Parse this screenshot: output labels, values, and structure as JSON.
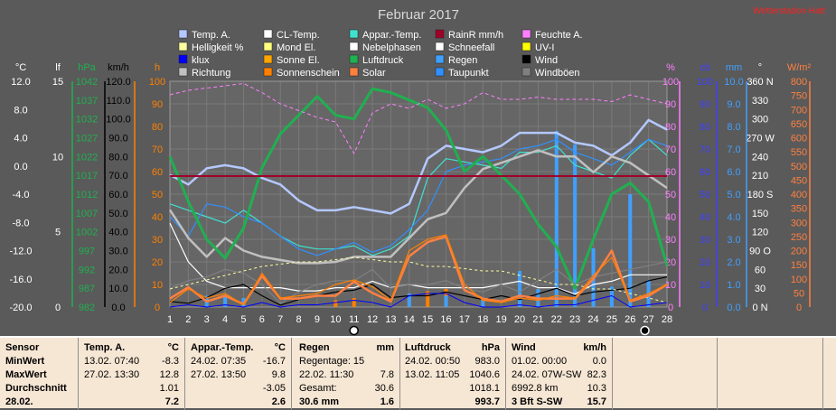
{
  "window": {
    "title": "Februar 2017",
    "corner_link": "Wetterstation Hatt"
  },
  "legend": [
    [
      {
        "label": "Temp. A.",
        "color": "#b4c8ff"
      },
      {
        "label": "CL-Temp.",
        "color": "#ffffff"
      },
      {
        "label": "Appar.-Temp.",
        "color": "#40e0d0"
      },
      {
        "label": "RainR mm/h",
        "color": "#a00028"
      },
      {
        "label": "Feuchte A.",
        "color": "#ff80ff"
      }
    ],
    [
      {
        "label": "Helligkeit %",
        "color": "#ffffa0"
      },
      {
        "label": "Mond El.",
        "color": "#ffff80"
      },
      {
        "label": "Nebelphasen",
        "color": "#ffffff"
      },
      {
        "label": "Schneefall",
        "color": "#ffffff"
      },
      {
        "label": "UV-I",
        "color": "#ffff00"
      }
    ],
    [
      {
        "label": "klux",
        "color": "#0000ff"
      },
      {
        "label": "Sonne El.",
        "color": "#ffa500"
      },
      {
        "label": "Luftdruck",
        "color": "#20b050"
      },
      {
        "label": "Regen",
        "color": "#40a0ff"
      },
      {
        "label": "Wind",
        "color": "#000000"
      }
    ],
    [
      {
        "label": "Richtung",
        "color": "#c0c0c0"
      },
      {
        "label": "Sonnenschein",
        "color": "#ff8000"
      },
      {
        "label": "Solar",
        "color": "#ff8040"
      },
      {
        "label": "Taupunkt",
        "color": "#3090ff"
      },
      {
        "label": "Windböen",
        "color": "#808080"
      }
    ]
  ],
  "colors": {
    "background": "#5a5a5a",
    "plot_bg": "#666666",
    "grid": "#808080",
    "stats_bg": "#f6e6d4"
  },
  "chart_data": {
    "type": "line",
    "x": [
      1,
      2,
      3,
      4,
      5,
      6,
      7,
      8,
      9,
      10,
      11,
      12,
      13,
      14,
      15,
      16,
      17,
      18,
      19,
      20,
      21,
      22,
      23,
      24,
      25,
      26,
      27,
      28
    ],
    "xlim": [
      1,
      28
    ],
    "axes_left": [
      {
        "unit": "°C",
        "ticks": [
          "12.0",
          "8.0",
          "4.0",
          "0.0",
          "-4.0",
          "-8.0",
          "-12.0",
          "-16.0",
          "-20.0"
        ],
        "range": [
          -20,
          15
        ],
        "color": "#ffffff"
      },
      {
        "unit": "lf",
        "ticks": [
          "15",
          "10",
          "5",
          "0"
        ],
        "range": [
          0,
          15
        ],
        "color": "#ffffff"
      },
      {
        "unit": "hPa",
        "ticks": [
          "1042",
          "1037",
          "1032",
          "1027",
          "1022",
          "1017",
          "1012",
          "1007",
          "1002",
          "997",
          "992",
          "987",
          "982"
        ],
        "range": [
          982,
          1042
        ],
        "color": "#20b050"
      },
      {
        "unit": "km/h",
        "ticks": [
          "120.0",
          "110.0",
          "100.0",
          "90.0",
          "80.0",
          "70.0",
          "60.0",
          "50.0",
          "40.0",
          "30.0",
          "20.0",
          "10.0",
          "0.0"
        ],
        "range": [
          0,
          120
        ],
        "color": "#000000"
      },
      {
        "unit": "h",
        "ticks": [
          "100",
          "90",
          "80",
          "70",
          "60",
          "50",
          "40",
          "30",
          "20",
          "10",
          "0"
        ],
        "range": [
          0,
          100
        ],
        "color": "#ff8000"
      }
    ],
    "axes_right": [
      {
        "unit": "%",
        "ticks": [
          "100",
          "90",
          "80",
          "70",
          "60",
          "50",
          "40",
          "30",
          "20",
          "10",
          "0"
        ],
        "range": [
          0,
          100
        ],
        "color": "#ff80ff"
      },
      {
        "unit": "cb",
        "ticks": [
          "100",
          "90",
          "80",
          "70",
          "60",
          "50",
          "40",
          "30",
          "20",
          "10",
          "0"
        ],
        "range": [
          0,
          100
        ],
        "color": "#4040ff"
      },
      {
        "unit": "mm",
        "ticks": [
          "10.0",
          "9.0",
          "8.0",
          "7.0",
          "6.0",
          "5.0",
          "4.0",
          "3.0",
          "2.0",
          "1.0",
          "0.0"
        ],
        "range": [
          0,
          10
        ],
        "color": "#40a0ff"
      },
      {
        "unit": "°",
        "ticks": [
          "360 N",
          "330",
          "300",
          "270 W",
          "240",
          "210",
          "180 S",
          "150",
          "120",
          "90 O",
          "60",
          "30",
          "0    N"
        ],
        "range": [
          0,
          360
        ],
        "color": "#ffffff"
      },
      {
        "unit": "W/m²",
        "ticks": [
          "800",
          "750",
          "700",
          "650",
          "600",
          "550",
          "500",
          "450",
          "400",
          "350",
          "300",
          "250",
          "200",
          "150",
          "100",
          "50",
          "0"
        ],
        "range": [
          0,
          800
        ],
        "color": "#ff8040"
      }
    ],
    "series": [
      {
        "name": "Temp. A.",
        "axis": "°C",
        "color": "#b4c8ff",
        "width": 2.5,
        "values": [
          0.5,
          -1.0,
          1.5,
          2.0,
          1.5,
          0.0,
          -1.0,
          -3.5,
          -5.0,
          -5.0,
          -4.5,
          -5.0,
          -5.5,
          -4.0,
          3.0,
          5.0,
          4.5,
          4.0,
          5.0,
          7.0,
          7.0,
          7.0,
          5.5,
          5.0,
          3.5,
          5.5,
          9.0,
          7.5
        ]
      },
      {
        "name": "Appar.-Temp.",
        "axis": "°C",
        "color": "#40e0d0",
        "width": 1.2,
        "values": [
          -4.0,
          -5.0,
          -6.0,
          -7.0,
          -5.0,
          -7.0,
          -9.0,
          -10.5,
          -11.0,
          -11.0,
          -10.5,
          -12.0,
          -11.0,
          -9.0,
          0.0,
          3.0,
          2.5,
          2.0,
          1.5,
          4.0,
          4.0,
          5.0,
          2.0,
          1.0,
          0.0,
          3.5,
          6.0,
          3.5
        ]
      },
      {
        "name": "Taupunkt",
        "axis": "°C",
        "color": "#3090ff",
        "width": 1.2,
        "values": [
          -6.0,
          -9.0,
          -4.0,
          -4.5,
          -6.0,
          -7.0,
          -9.0,
          -11.0,
          -12.0,
          -11.0,
          -10.0,
          -11.5,
          -10.5,
          -8.0,
          -5.0,
          1.0,
          2.0,
          2.5,
          3.0,
          4.5,
          5.0,
          6.0,
          4.0,
          3.0,
          2.0,
          4.0,
          6.0,
          5.0
        ]
      },
      {
        "name": "CL-Temp.",
        "axis": "°C",
        "color": "#ffffff",
        "width": 1.2,
        "values": [
          -7.0,
          -13.0,
          -16.0,
          -17.0,
          -17.0,
          -17.0,
          -17.0,
          -17.5,
          -17.5,
          -17.0,
          -17.0,
          -16.0,
          -17.0,
          -16.5,
          -17.0,
          -17.0,
          -17.0,
          -17.0,
          -16.5,
          -16.0,
          -17.0,
          -17.0,
          -18.0,
          -16.5,
          -16.0,
          -15.0,
          -15.0,
          -15.0
        ]
      },
      {
        "name": "Richtung",
        "axis": "°",
        "color": "#c0c0c0",
        "width": 2.5,
        "values": [
          155,
          110,
          80,
          110,
          90,
          80,
          75,
          70,
          70,
          72,
          80,
          80,
          80,
          110,
          140,
          150,
          190,
          220,
          230,
          240,
          250,
          240,
          240,
          215,
          240,
          230,
          210,
          190
        ]
      },
      {
        "name": "Luftdruck",
        "axis": "hPa",
        "color": "#20b050",
        "width": 3,
        "values": [
          1022,
          1010,
          1000,
          995,
          1003,
          1019,
          1028,
          1033,
          1038,
          1033,
          1032,
          1040,
          1039,
          1037,
          1035,
          1029,
          1018,
          1022,
          1017,
          1012,
          1004,
          998,
          987,
          1000,
          1012,
          1015,
          1010,
          993
        ]
      },
      {
        "name": "Feuchte A.",
        "axis": "%",
        "color": "#ff80ff",
        "width": 1,
        "dash": "4,3",
        "values": [
          94,
          96,
          97,
          98,
          99,
          95,
          90,
          87,
          84,
          82,
          68,
          86,
          90,
          88,
          92,
          88,
          90,
          95,
          92,
          92,
          93,
          92,
          92,
          92,
          91,
          94,
          92,
          90
        ]
      },
      {
        "name": "Wind",
        "axis": "km/h",
        "color": "#000000",
        "width": 1.2,
        "values": [
          3,
          2,
          5,
          10,
          12,
          6,
          1,
          4,
          6,
          8,
          9,
          12,
          5,
          6,
          6,
          8,
          6,
          4,
          6,
          4,
          7,
          10,
          6,
          8,
          9,
          10,
          14,
          16
        ]
      },
      {
        "name": "Windböen",
        "axis": "km/h",
        "color": "#808080",
        "width": 1.2,
        "values": [
          10,
          14,
          16,
          20,
          18,
          12,
          2,
          8,
          12,
          14,
          14,
          20,
          10,
          12,
          12,
          14,
          10,
          8,
          12,
          8,
          14,
          20,
          12,
          16,
          18,
          20,
          22,
          24
        ]
      },
      {
        "name": "Helligkeit %",
        "axis": "%",
        "color": "#ffffa0",
        "width": 1,
        "dash": "3,3",
        "values": [
          8,
          10,
          12,
          14,
          16,
          18,
          19,
          20,
          20,
          21,
          22,
          21,
          20,
          20,
          18,
          18,
          17,
          16,
          16,
          14,
          12,
          10,
          10,
          8,
          8,
          6,
          4,
          2
        ]
      },
      {
        "name": "Solar",
        "axis": "W/m²",
        "color": "#ff8040",
        "width": 2.5,
        "values": [
          30,
          70,
          20,
          40,
          10,
          110,
          30,
          30,
          40,
          40,
          90,
          50,
          20,
          180,
          230,
          250,
          60,
          30,
          20,
          40,
          30,
          30,
          30,
          100,
          200,
          20,
          40,
          80
        ]
      },
      {
        "name": "Sonnenschein",
        "axis": "h",
        "color": "#ff8000",
        "width": 1.2,
        "values": [
          2,
          8,
          4,
          6,
          1,
          15,
          4,
          5,
          6,
          10,
          12,
          9,
          3,
          25,
          30,
          32,
          10,
          3,
          2,
          4,
          3,
          5,
          4,
          14,
          22,
          3,
          6,
          10
        ]
      },
      {
        "name": "klux",
        "axis": "cb",
        "color": "#0000ff",
        "width": 1,
        "values": [
          0,
          1,
          0,
          1,
          0,
          2,
          0,
          1,
          1,
          2,
          3,
          2,
          0,
          5,
          6,
          6,
          2,
          0,
          0,
          1,
          0,
          1,
          1,
          3,
          5,
          0,
          1,
          2
        ]
      }
    ],
    "rainR": {
      "name": "RainR mm/h",
      "axis": "mm",
      "value": 5.8,
      "color": "#a00028"
    },
    "regen": {
      "name": "Regen",
      "axis": "mm",
      "color": "#40a0ff",
      "x": [
        3,
        4,
        5,
        14,
        16,
        18,
        20,
        21,
        22,
        23,
        24,
        25,
        26,
        27
      ],
      "values": [
        0.5,
        0.5,
        0.4,
        0.6,
        0.5,
        0.4,
        1.6,
        0.8,
        7.8,
        7.2,
        2.6,
        0.9,
        5.0,
        1.2
      ]
    },
    "sun_bars": {
      "name": "Sonne El.",
      "axis": "h",
      "color": "#ff8000",
      "x": [
        10,
        11,
        14,
        15,
        16
      ],
      "values": [
        3,
        4,
        6,
        7,
        8
      ]
    },
    "moon_markers": [
      {
        "x": 11,
        "phase": "full"
      },
      {
        "x": 26.8,
        "phase": "new"
      }
    ]
  },
  "stats": {
    "sensor_col": {
      "header": "Sensor",
      "rows": [
        "MinWert",
        "MaxWert",
        "Durchschnitt",
        "28.02."
      ]
    },
    "columns": [
      {
        "header": "Temp. A.",
        "unit": "°C",
        "rows": [
          [
            "13.02.  07:40",
            "-8.3"
          ],
          [
            "27.02.  13:30",
            "12.8"
          ],
          [
            "",
            "1.01"
          ],
          [
            "",
            "7.2"
          ]
        ]
      },
      {
        "header": "Appar.-Temp.",
        "unit": "°C",
        "rows": [
          [
            "24.02.  07:35",
            "-16.7"
          ],
          [
            "27.02.  13:50",
            "9.8"
          ],
          [
            "",
            "-3.05"
          ],
          [
            "",
            "2.6"
          ]
        ]
      },
      {
        "header": "Regen",
        "unit": "mm",
        "rows": [
          [
            "Regentage: 15",
            ""
          ],
          [
            "22.02.  11:30",
            "7.8"
          ],
          [
            "Gesamt:",
            "30.6"
          ],
          [
            "30.6 mm",
            "1.6"
          ]
        ]
      },
      {
        "header": "Luftdruck",
        "unit": "hPa",
        "rows": [
          [
            "24.02.  00:50",
            "983.0"
          ],
          [
            "13.02.  11:05",
            "1040.6"
          ],
          [
            "",
            "1018.1"
          ],
          [
            "",
            "993.7"
          ]
        ]
      },
      {
        "header": "Wind",
        "unit": "km/h",
        "rows": [
          [
            "01.02.  00:00",
            "0.0"
          ],
          [
            "24.02.  07W-SW",
            "82.3"
          ],
          [
            "6992.8 km",
            "10.3"
          ],
          [
            "3 Bft S-SW",
            "15.7"
          ]
        ]
      }
    ]
  }
}
